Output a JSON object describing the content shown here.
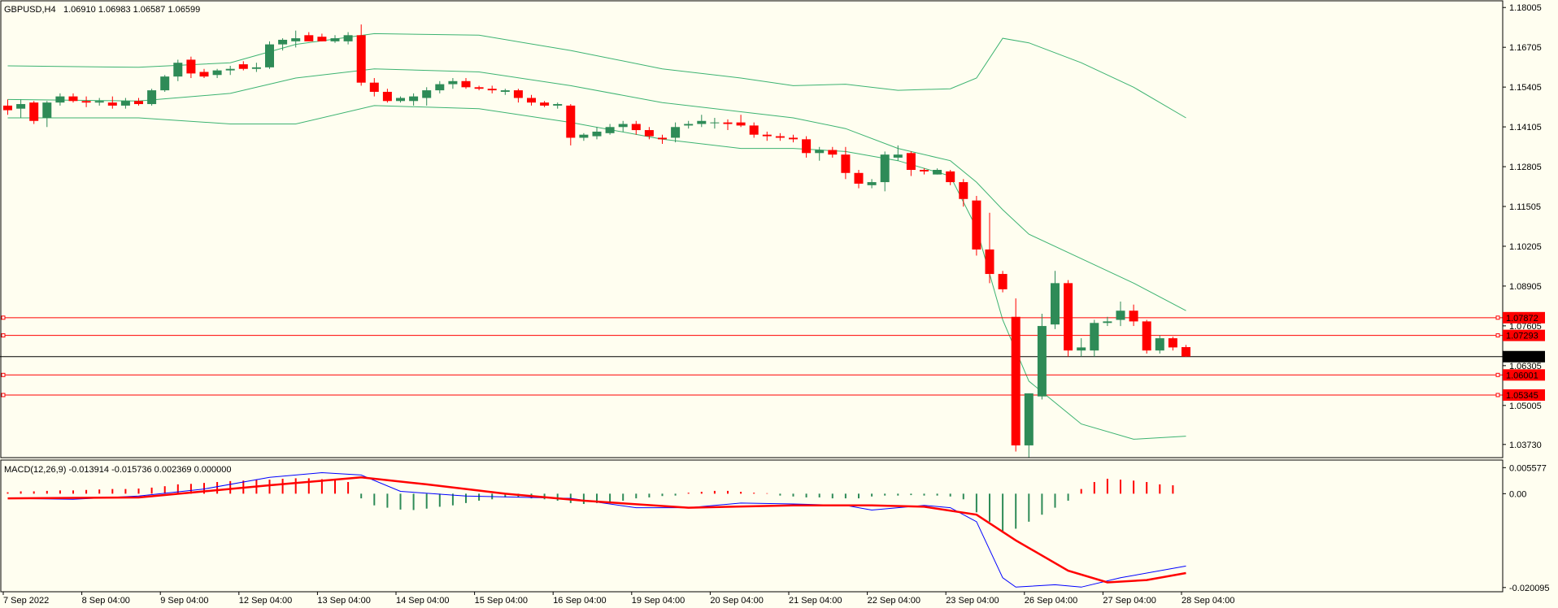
{
  "header": {
    "symbol": "GBPUSD,H4",
    "ohlc": "1.06910 1.06983 1.06587 1.06599"
  },
  "macd_header": "MACD(12,26,9) -0.013914 -0.015736 0.002369 0.000000",
  "price_axis": {
    "ticks": [
      "1.18005",
      "1.16705",
      "1.15405",
      "1.14105",
      "1.12805",
      "1.11505",
      "1.10205",
      "1.08905",
      "1.07605",
      "1.06305",
      "1.05005",
      "1.03730"
    ]
  },
  "macd_axis": {
    "ticks": [
      "0.005577",
      "0.00",
      "-0.020095"
    ]
  },
  "time_axis": {
    "labels": [
      "7 Sep 2022",
      "8 Sep 04:00",
      "9 Sep 04:00",
      "12 Sep 04:00",
      "13 Sep 04:00",
      "14 Sep 04:00",
      "15 Sep 04:00",
      "16 Sep 04:00",
      "19 Sep 04:00",
      "20 Sep 04:00",
      "21 Sep 04:00",
      "22 Sep 04:00",
      "23 Sep 04:00",
      "26 Sep 04:00",
      "27 Sep 04:00",
      "28 Sep 04:00"
    ]
  },
  "levels": [
    {
      "label": "1.07872",
      "value": 1.07872,
      "color": "#ff0000"
    },
    {
      "label": "1.07293",
      "value": 1.07293,
      "color": "#ff0000"
    },
    {
      "label": "1.06001",
      "value": 1.06001,
      "color": "#ff0000"
    },
    {
      "label": "1.05345",
      "value": 1.05345,
      "color": "#ff0000"
    }
  ],
  "current_price": {
    "label": "1.06599",
    "value": 1.06599,
    "color": "#000000"
  },
  "colors": {
    "bull": "#2e8b57",
    "bear": "#ff0000",
    "bands": "#3cb371",
    "macd_main": "#0000ff",
    "macd_signal": "#ff0000",
    "background": "#fffef0"
  },
  "chart_data": {
    "type": "candlestick",
    "title": "GBPUSD,H4",
    "price_range": [
      1.033,
      1.1825
    ],
    "candles": [
      {
        "o": 1.148,
        "h": 1.15,
        "l": 1.145,
        "c": 1.1465
      },
      {
        "o": 1.147,
        "h": 1.15,
        "l": 1.144,
        "c": 1.1485
      },
      {
        "o": 1.149,
        "h": 1.1495,
        "l": 1.142,
        "c": 1.143
      },
      {
        "o": 1.144,
        "h": 1.1495,
        "l": 1.141,
        "c": 1.149
      },
      {
        "o": 1.149,
        "h": 1.152,
        "l": 1.148,
        "c": 1.151
      },
      {
        "o": 1.151,
        "h": 1.152,
        "l": 1.149,
        "c": 1.1495
      },
      {
        "o": 1.1495,
        "h": 1.151,
        "l": 1.1475,
        "c": 1.149
      },
      {
        "o": 1.149,
        "h": 1.1505,
        "l": 1.148,
        "c": 1.1495
      },
      {
        "o": 1.149,
        "h": 1.151,
        "l": 1.147,
        "c": 1.148
      },
      {
        "o": 1.148,
        "h": 1.1505,
        "l": 1.147,
        "c": 1.1495
      },
      {
        "o": 1.1495,
        "h": 1.1505,
        "l": 1.148,
        "c": 1.1485
      },
      {
        "o": 1.1485,
        "h": 1.1535,
        "l": 1.148,
        "c": 1.153
      },
      {
        "o": 1.153,
        "h": 1.158,
        "l": 1.1525,
        "c": 1.1575
      },
      {
        "o": 1.1575,
        "h": 1.163,
        "l": 1.156,
        "c": 1.162
      },
      {
        "o": 1.163,
        "h": 1.164,
        "l": 1.157,
        "c": 1.1585
      },
      {
        "o": 1.159,
        "h": 1.16,
        "l": 1.157,
        "c": 1.1575
      },
      {
        "o": 1.158,
        "h": 1.16,
        "l": 1.157,
        "c": 1.1595
      },
      {
        "o": 1.1595,
        "h": 1.161,
        "l": 1.158,
        "c": 1.16
      },
      {
        "o": 1.1615,
        "h": 1.1625,
        "l": 1.1595,
        "c": 1.16
      },
      {
        "o": 1.16,
        "h": 1.162,
        "l": 1.159,
        "c": 1.1605
      },
      {
        "o": 1.1605,
        "h": 1.169,
        "l": 1.16,
        "c": 1.168
      },
      {
        "o": 1.168,
        "h": 1.17,
        "l": 1.166,
        "c": 1.1695
      },
      {
        "o": 1.169,
        "h": 1.1725,
        "l": 1.167,
        "c": 1.17
      },
      {
        "o": 1.171,
        "h": 1.172,
        "l": 1.169,
        "c": 1.169
      },
      {
        "o": 1.1705,
        "h": 1.1715,
        "l": 1.169,
        "c": 1.169
      },
      {
        "o": 1.169,
        "h": 1.171,
        "l": 1.1685,
        "c": 1.17
      },
      {
        "o": 1.169,
        "h": 1.172,
        "l": 1.168,
        "c": 1.171
      },
      {
        "o": 1.171,
        "h": 1.1745,
        "l": 1.1545,
        "c": 1.1555
      },
      {
        "o": 1.1555,
        "h": 1.157,
        "l": 1.151,
        "c": 1.1525
      },
      {
        "o": 1.1525,
        "h": 1.1535,
        "l": 1.149,
        "c": 1.1495
      },
      {
        "o": 1.1495,
        "h": 1.151,
        "l": 1.149,
        "c": 1.1505
      },
      {
        "o": 1.1495,
        "h": 1.152,
        "l": 1.148,
        "c": 1.151
      },
      {
        "o": 1.1505,
        "h": 1.154,
        "l": 1.148,
        "c": 1.153
      },
      {
        "o": 1.153,
        "h": 1.156,
        "l": 1.152,
        "c": 1.155
      },
      {
        "o": 1.155,
        "h": 1.157,
        "l": 1.1535,
        "c": 1.156
      },
      {
        "o": 1.156,
        "h": 1.157,
        "l": 1.1535,
        "c": 1.154
      },
      {
        "o": 1.154,
        "h": 1.1545,
        "l": 1.153,
        "c": 1.1535
      },
      {
        "o": 1.1535,
        "h": 1.1545,
        "l": 1.152,
        "c": 1.153
      },
      {
        "o": 1.1525,
        "h": 1.1535,
        "l": 1.1515,
        "c": 1.153
      },
      {
        "o": 1.153,
        "h": 1.1535,
        "l": 1.149,
        "c": 1.1505
      },
      {
        "o": 1.1505,
        "h": 1.1515,
        "l": 1.148,
        "c": 1.149
      },
      {
        "o": 1.149,
        "h": 1.1495,
        "l": 1.1475,
        "c": 1.148
      },
      {
        "o": 1.148,
        "h": 1.149,
        "l": 1.147,
        "c": 1.1485
      },
      {
        "o": 1.148,
        "h": 1.1485,
        "l": 1.135,
        "c": 1.1375
      },
      {
        "o": 1.1375,
        "h": 1.139,
        "l": 1.1365,
        "c": 1.1385
      },
      {
        "o": 1.138,
        "h": 1.141,
        "l": 1.137,
        "c": 1.1395
      },
      {
        "o": 1.139,
        "h": 1.142,
        "l": 1.1385,
        "c": 1.141
      },
      {
        "o": 1.141,
        "h": 1.143,
        "l": 1.1395,
        "c": 1.142
      },
      {
        "o": 1.142,
        "h": 1.143,
        "l": 1.1385,
        "c": 1.14
      },
      {
        "o": 1.14,
        "h": 1.141,
        "l": 1.137,
        "c": 1.138
      },
      {
        "o": 1.1375,
        "h": 1.1385,
        "l": 1.1355,
        "c": 1.137
      },
      {
        "o": 1.1375,
        "h": 1.1425,
        "l": 1.136,
        "c": 1.141
      },
      {
        "o": 1.1415,
        "h": 1.143,
        "l": 1.1405,
        "c": 1.142
      },
      {
        "o": 1.142,
        "h": 1.145,
        "l": 1.141,
        "c": 1.143
      },
      {
        "o": 1.1425,
        "h": 1.144,
        "l": 1.1405,
        "c": 1.1425
      },
      {
        "o": 1.1425,
        "h": 1.1435,
        "l": 1.14,
        "c": 1.142
      },
      {
        "o": 1.1425,
        "h": 1.145,
        "l": 1.141,
        "c": 1.1415
      },
      {
        "o": 1.1415,
        "h": 1.1425,
        "l": 1.1375,
        "c": 1.1385
      },
      {
        "o": 1.1385,
        "h": 1.1395,
        "l": 1.1365,
        "c": 1.138
      },
      {
        "o": 1.138,
        "h": 1.139,
        "l": 1.1365,
        "c": 1.1375
      },
      {
        "o": 1.1375,
        "h": 1.1385,
        "l": 1.136,
        "c": 1.137
      },
      {
        "o": 1.137,
        "h": 1.138,
        "l": 1.131,
        "c": 1.1325
      },
      {
        "o": 1.1325,
        "h": 1.1345,
        "l": 1.13,
        "c": 1.1335
      },
      {
        "o": 1.1335,
        "h": 1.1345,
        "l": 1.131,
        "c": 1.132
      },
      {
        "o": 1.132,
        "h": 1.1345,
        "l": 1.124,
        "c": 1.126
      },
      {
        "o": 1.126,
        "h": 1.127,
        "l": 1.121,
        "c": 1.1225
      },
      {
        "o": 1.122,
        "h": 1.124,
        "l": 1.121,
        "c": 1.123
      },
      {
        "o": 1.123,
        "h": 1.133,
        "l": 1.12,
        "c": 1.132
      },
      {
        "o": 1.131,
        "h": 1.135,
        "l": 1.13,
        "c": 1.132
      },
      {
        "o": 1.1325,
        "h": 1.133,
        "l": 1.125,
        "c": 1.127
      },
      {
        "o": 1.127,
        "h": 1.1275,
        "l": 1.1255,
        "c": 1.1265
      },
      {
        "o": 1.1255,
        "h": 1.1275,
        "l": 1.1255,
        "c": 1.127
      },
      {
        "o": 1.1265,
        "h": 1.127,
        "l": 1.122,
        "c": 1.123
      },
      {
        "o": 1.123,
        "h": 1.124,
        "l": 1.115,
        "c": 1.1175
      },
      {
        "o": 1.117,
        "h": 1.1185,
        "l": 1.099,
        "c": 1.101
      },
      {
        "o": 1.101,
        "h": 1.113,
        "l": 1.09,
        "c": 1.093
      },
      {
        "o": 1.093,
        "h": 1.094,
        "l": 1.087,
        "c": 1.088
      },
      {
        "o": 1.079,
        "h": 1.085,
        "l": 1.035,
        "c": 1.037
      },
      {
        "o": 1.037,
        "h": 1.054,
        "l": 1.033,
        "c": 1.054
      },
      {
        "o": 1.053,
        "h": 1.08,
        "l": 1.052,
        "c": 1.076
      },
      {
        "o": 1.0765,
        "h": 1.094,
        "l": 1.075,
        "c": 1.09
      },
      {
        "o": 1.09,
        "h": 1.091,
        "l": 1.066,
        "c": 1.068
      },
      {
        "o": 1.068,
        "h": 1.072,
        "l": 1.066,
        "c": 1.069
      },
      {
        "o": 1.068,
        "h": 1.078,
        "l": 1.066,
        "c": 1.077
      },
      {
        "o": 1.077,
        "h": 1.079,
        "l": 1.076,
        "c": 1.0775
      },
      {
        "o": 1.078,
        "h": 1.084,
        "l": 1.076,
        "c": 1.081
      },
      {
        "o": 1.081,
        "h": 1.083,
        "l": 1.076,
        "c": 1.0775
      },
      {
        "o": 1.0775,
        "h": 1.078,
        "l": 1.067,
        "c": 1.068
      },
      {
        "o": 1.068,
        "h": 1.073,
        "l": 1.067,
        "c": 1.072
      },
      {
        "o": 1.072,
        "h": 1.0725,
        "l": 1.068,
        "c": 1.069
      },
      {
        "o": 1.0691,
        "h": 1.0698,
        "l": 1.0659,
        "c": 1.066
      }
    ],
    "bollinger": {
      "upper": [
        [
          0,
          1.161
        ],
        [
          10,
          1.1605
        ],
        [
          17,
          1.162
        ],
        [
          22,
          1.168
        ],
        [
          28,
          1.1715
        ],
        [
          36,
          1.171
        ],
        [
          43,
          1.166
        ],
        [
          50,
          1.16
        ],
        [
          56,
          1.157
        ],
        [
          60,
          1.1545
        ],
        [
          64,
          1.155
        ],
        [
          68,
          1.153
        ],
        [
          72,
          1.1535
        ],
        [
          74,
          1.157
        ],
        [
          76,
          1.17
        ],
        [
          78,
          1.1685
        ],
        [
          82,
          1.162
        ],
        [
          86,
          1.154
        ],
        [
          90,
          1.144
        ]
      ],
      "middle": [
        [
          0,
          1.15
        ],
        [
          10,
          1.1495
        ],
        [
          17,
          1.152
        ],
        [
          22,
          1.157
        ],
        [
          28,
          1.16
        ],
        [
          36,
          1.159
        ],
        [
          43,
          1.1545
        ],
        [
          50,
          1.149
        ],
        [
          56,
          1.146
        ],
        [
          60,
          1.144
        ],
        [
          64,
          1.1405
        ],
        [
          68,
          1.134
        ],
        [
          72,
          1.13
        ],
        [
          74,
          1.123
        ],
        [
          76,
          1.114
        ],
        [
          78,
          1.106
        ],
        [
          82,
          1.098
        ],
        [
          86,
          1.09
        ],
        [
          90,
          1.081
        ]
      ],
      "lower": [
        [
          0,
          1.144
        ],
        [
          10,
          1.144
        ],
        [
          17,
          1.142
        ],
        [
          22,
          1.142
        ],
        [
          28,
          1.148
        ],
        [
          36,
          1.147
        ],
        [
          43,
          1.1425
        ],
        [
          50,
          1.137
        ],
        [
          56,
          1.134
        ],
        [
          60,
          1.134
        ],
        [
          64,
          1.133
        ],
        [
          68,
          1.13
        ],
        [
          72,
          1.125
        ],
        [
          74,
          1.108
        ],
        [
          76,
          1.078
        ],
        [
          78,
          1.058
        ],
        [
          82,
          1.044
        ],
        [
          86,
          1.039
        ],
        [
          90,
          1.04
        ]
      ]
    },
    "macd": {
      "range": [
        -0.021,
        0.0072
      ],
      "histogram": [
        0.0003,
        0.0005,
        0.0005,
        0.0006,
        0.0007,
        0.0007,
        0.0008,
        0.0009,
        0.001,
        0.001,
        0.0011,
        0.0013,
        0.0016,
        0.002,
        0.0021,
        0.0023,
        0.0025,
        0.0027,
        0.0028,
        0.003,
        0.003,
        0.0032,
        0.0033,
        0.0033,
        0.0031,
        0.003,
        0.0025,
        -0.001,
        -0.0025,
        -0.003,
        -0.0034,
        -0.0035,
        -0.0032,
        -0.0028,
        -0.0025,
        -0.002,
        -0.0015,
        -0.0012,
        -0.0008,
        -0.0008,
        -0.001,
        -0.0012,
        -0.0015,
        -0.002,
        -0.0022,
        -0.002,
        -0.0018,
        -0.0015,
        -0.001,
        -0.0008,
        -0.0005,
        -0.0004,
        0.0002,
        0.0004,
        0.0006,
        0.0006,
        0.0004,
        0.0002,
        0.0001,
        -0.0004,
        -0.0006,
        -0.0008,
        -0.0008,
        -0.001,
        -0.001,
        -0.001,
        -0.0006,
        -0.0004,
        -0.0004,
        -0.0003,
        -0.0004,
        -0.0004,
        -0.0006,
        -0.0012,
        -0.004,
        -0.006,
        -0.008,
        -0.0075,
        -0.006,
        -0.0045,
        -0.003,
        -0.0015,
        0.001,
        0.0025,
        0.0032,
        0.003,
        0.0028,
        0.0025,
        0.002,
        0.0018
      ],
      "main": [
        [
          0,
          -0.001
        ],
        [
          5,
          -0.0012
        ],
        [
          10,
          -0.0005
        ],
        [
          15,
          0.001
        ],
        [
          20,
          0.0035
        ],
        [
          24,
          0.0045
        ],
        [
          27,
          0.004
        ],
        [
          30,
          0.0005
        ],
        [
          35,
          -0.0005
        ],
        [
          43,
          -0.001
        ],
        [
          48,
          -0.003
        ],
        [
          52,
          -0.003
        ],
        [
          56,
          -0.002
        ],
        [
          60,
          -0.0022
        ],
        [
          64,
          -0.0025
        ],
        [
          66,
          -0.0035
        ],
        [
          70,
          -0.0025
        ],
        [
          72,
          -0.003
        ],
        [
          74,
          -0.006
        ],
        [
          76,
          -0.018
        ],
        [
          77,
          -0.02
        ],
        [
          80,
          -0.0195
        ],
        [
          82,
          -0.02
        ],
        [
          85,
          -0.018
        ],
        [
          90,
          -0.0155
        ]
      ],
      "signal": [
        [
          0,
          -0.001
        ],
        [
          10,
          -0.0008
        ],
        [
          20,
          0.0018
        ],
        [
          27,
          0.0035
        ],
        [
          32,
          0.002
        ],
        [
          38,
          0.0
        ],
        [
          44,
          -0.0015
        ],
        [
          52,
          -0.003
        ],
        [
          60,
          -0.0025
        ],
        [
          66,
          -0.0025
        ],
        [
          70,
          -0.0028
        ],
        [
          74,
          -0.0045
        ],
        [
          77,
          -0.01
        ],
        [
          81,
          -0.0165
        ],
        [
          84,
          -0.019
        ],
        [
          87,
          -0.0185
        ],
        [
          90,
          -0.017
        ]
      ]
    }
  }
}
